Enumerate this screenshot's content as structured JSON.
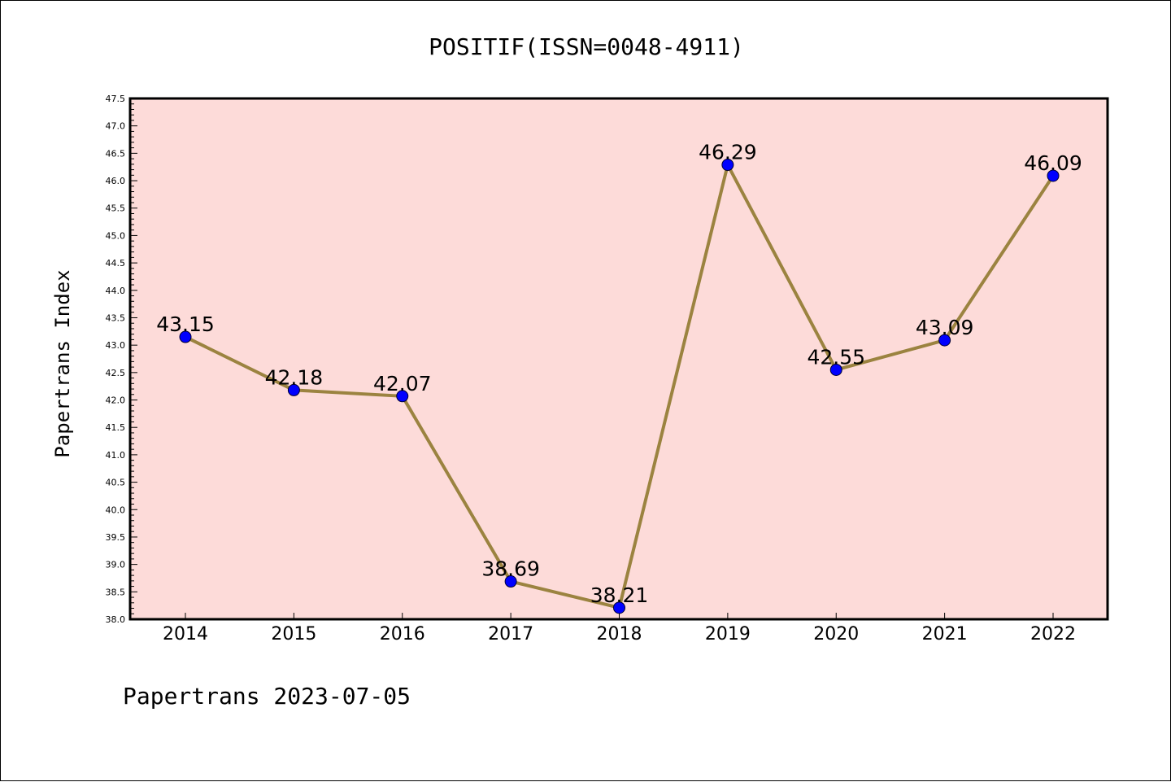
{
  "chart_data": {
    "type": "line",
    "title": "POSITIF(ISSN=0048-4911)",
    "xlabel": "",
    "ylabel": "Papertrans Index",
    "categories": [
      "2014",
      "2015",
      "2016",
      "2017",
      "2018",
      "2019",
      "2020",
      "2021",
      "2022"
    ],
    "series": [
      {
        "values": [
          43.15,
          42.18,
          42.07,
          38.69,
          38.21,
          46.29,
          42.55,
          43.09,
          46.09
        ],
        "labels": [
          "43.15",
          "42.18",
          "42.07",
          "38.69",
          "38.21",
          "46.29",
          "42.55",
          "43.09",
          "46.09"
        ]
      }
    ],
    "ylim": [
      38.0,
      47.5
    ],
    "yticks": [
      "38.0",
      "38.5",
      "39.0",
      "39.5",
      "40.0",
      "40.5",
      "41.0",
      "41.5",
      "42.0",
      "42.5",
      "43.0",
      "43.5",
      "44.0",
      "44.5",
      "45.0",
      "45.5",
      "46.0",
      "46.5",
      "47.0",
      "47.5"
    ],
    "grid": false,
    "line_color": "#9b8340",
    "marker_color": "#0000ff",
    "plot_background": "#fddbd9"
  },
  "footer": "Papertrans 2023-07-05"
}
